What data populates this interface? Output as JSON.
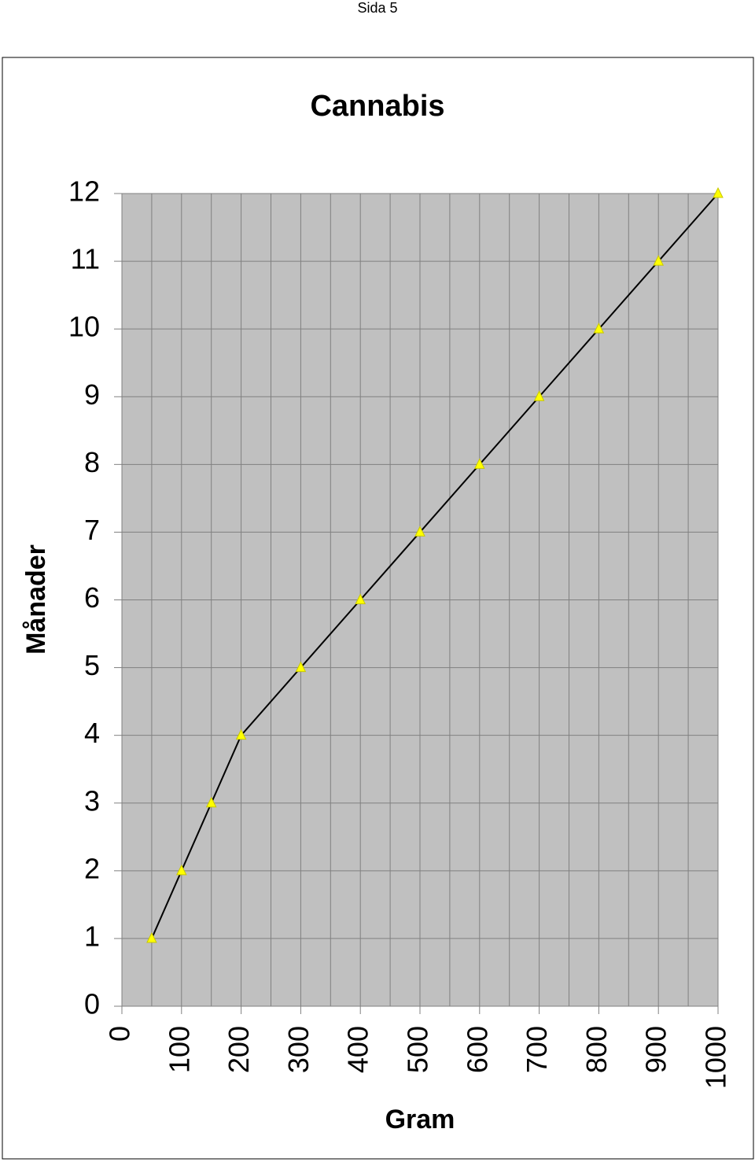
{
  "header": {
    "page": "Sida 5"
  },
  "chart_data": {
    "type": "line",
    "title": "Cannabis",
    "xlabel": "Gram",
    "ylabel": "Månader",
    "x": [
      50,
      100,
      150,
      200,
      300,
      400,
      500,
      600,
      700,
      800,
      900,
      1000
    ],
    "series": [
      {
        "values": [
          1,
          2,
          3,
          4,
          5,
          6,
          7,
          8,
          9,
          10,
          11,
          12
        ],
        "color": "#ffff00"
      }
    ],
    "xlim": [
      0,
      1000
    ],
    "xticks": [
      0,
      100,
      200,
      300,
      400,
      500,
      600,
      700,
      800,
      900,
      1000
    ],
    "xminorticks": [
      50,
      150,
      250,
      350,
      450,
      550,
      650,
      750,
      850,
      950
    ],
    "ylim": [
      0,
      12
    ],
    "yticks": [
      0,
      1,
      2,
      3,
      4,
      5,
      6,
      7,
      8,
      9,
      10,
      11,
      12
    ],
    "grid": true
  }
}
